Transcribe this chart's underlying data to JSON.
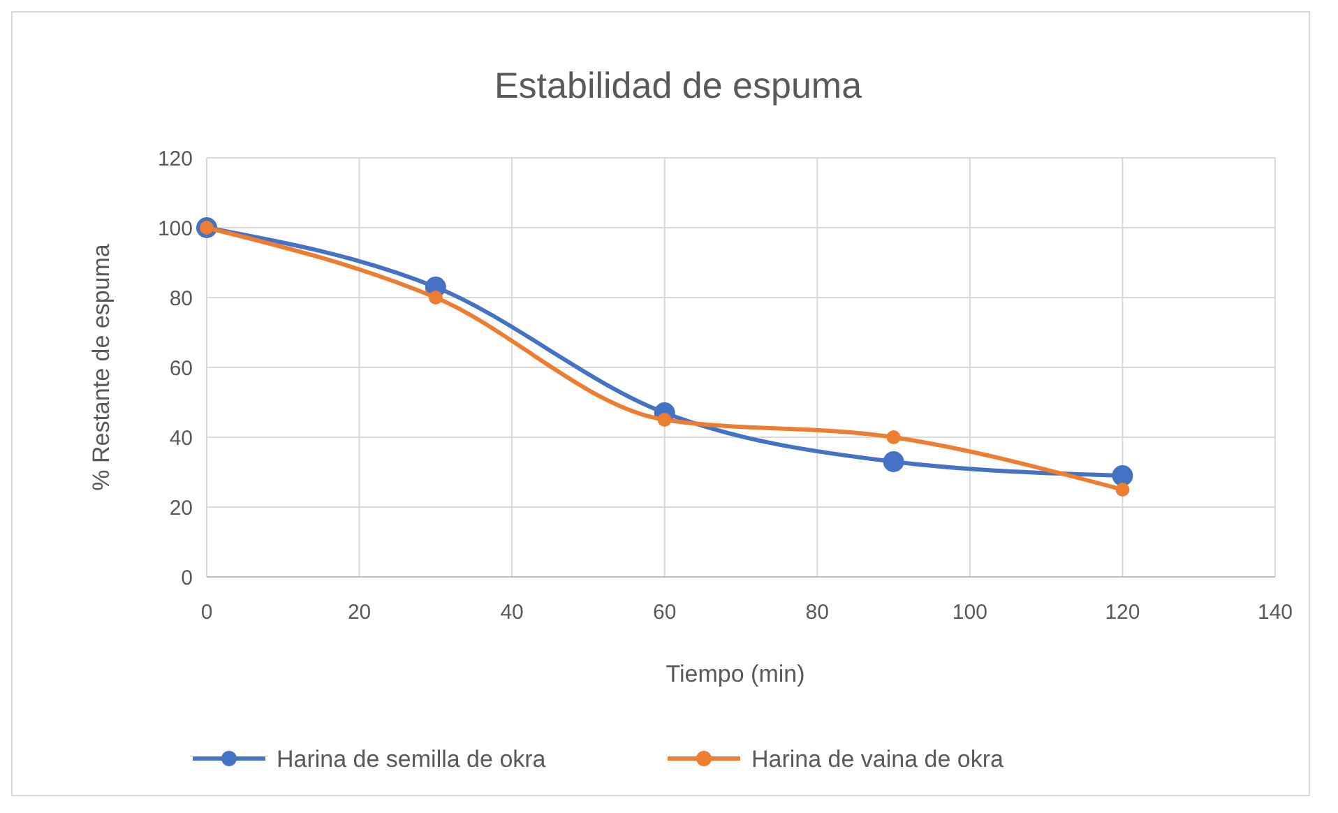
{
  "chart_data": {
    "type": "line",
    "title": "Estabilidad de espuma",
    "xlabel": "Tiempo (min)",
    "ylabel": "% Restante de espuma",
    "x": [
      0,
      30,
      60,
      90,
      120
    ],
    "series": [
      {
        "name": "Harina de semilla de okra",
        "color": "#4472c4",
        "values": [
          100,
          83,
          47,
          33,
          29
        ]
      },
      {
        "name": "Harina de vaina de okra",
        "color": "#ed7d31",
        "values": [
          100,
          80,
          45,
          40,
          25
        ]
      }
    ],
    "xlim": [
      0,
      140
    ],
    "xticks": [
      0,
      20,
      40,
      60,
      80,
      100,
      120,
      140
    ],
    "ylim": [
      0,
      120
    ],
    "yticks": [
      0,
      20,
      40,
      60,
      80,
      100,
      120
    ],
    "grid": true,
    "legend": "bottom",
    "marker": "circle",
    "line_style": "solid"
  }
}
